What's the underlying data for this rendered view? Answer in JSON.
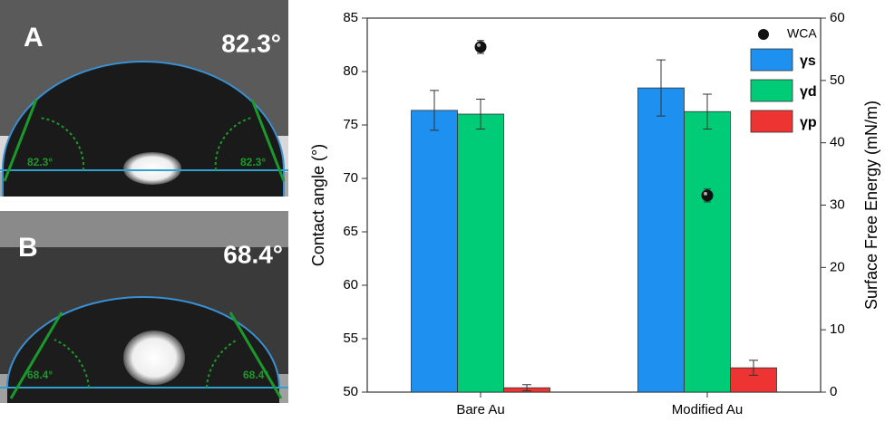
{
  "panels": [
    {
      "letter": "A",
      "angle": "82.3°",
      "left": "82.3°",
      "right": "82.3°"
    },
    {
      "letter": "B",
      "angle": "68.4°",
      "left": "68.4°",
      "right": "68.4°"
    }
  ],
  "chart_data": {
    "type": "bar",
    "categories": [
      "Bare Au",
      "Modified Au"
    ],
    "ylabel": "Contact angle (°)",
    "y2label": "Surface Free Energy (mN/m)",
    "ylim": [
      50,
      85
    ],
    "yticks": [
      50,
      55,
      60,
      65,
      70,
      75,
      80,
      85
    ],
    "y2lim": [
      0,
      60
    ],
    "y2ticks": [
      0,
      10,
      20,
      30,
      40,
      50,
      60
    ],
    "legend": "upper right",
    "series": [
      {
        "name": "WCA",
        "type": "scatter",
        "color": "#111111",
        "values": [
          82.3,
          68.4
        ],
        "errors": [
          0.6,
          0.6
        ]
      },
      {
        "name": "γs",
        "axis": "y2",
        "color": "#1e90f0",
        "values": [
          45.2,
          48.8
        ],
        "errors": [
          3.2,
          4.5
        ]
      },
      {
        "name": "γd",
        "axis": "y2",
        "color": "#00cc77",
        "values": [
          44.6,
          45.0
        ],
        "errors": [
          2.4,
          2.8
        ]
      },
      {
        "name": "γp",
        "axis": "y2",
        "color": "#ee3333",
        "values": [
          0.7,
          3.9
        ],
        "errors": [
          0.5,
          1.2
        ]
      }
    ]
  }
}
